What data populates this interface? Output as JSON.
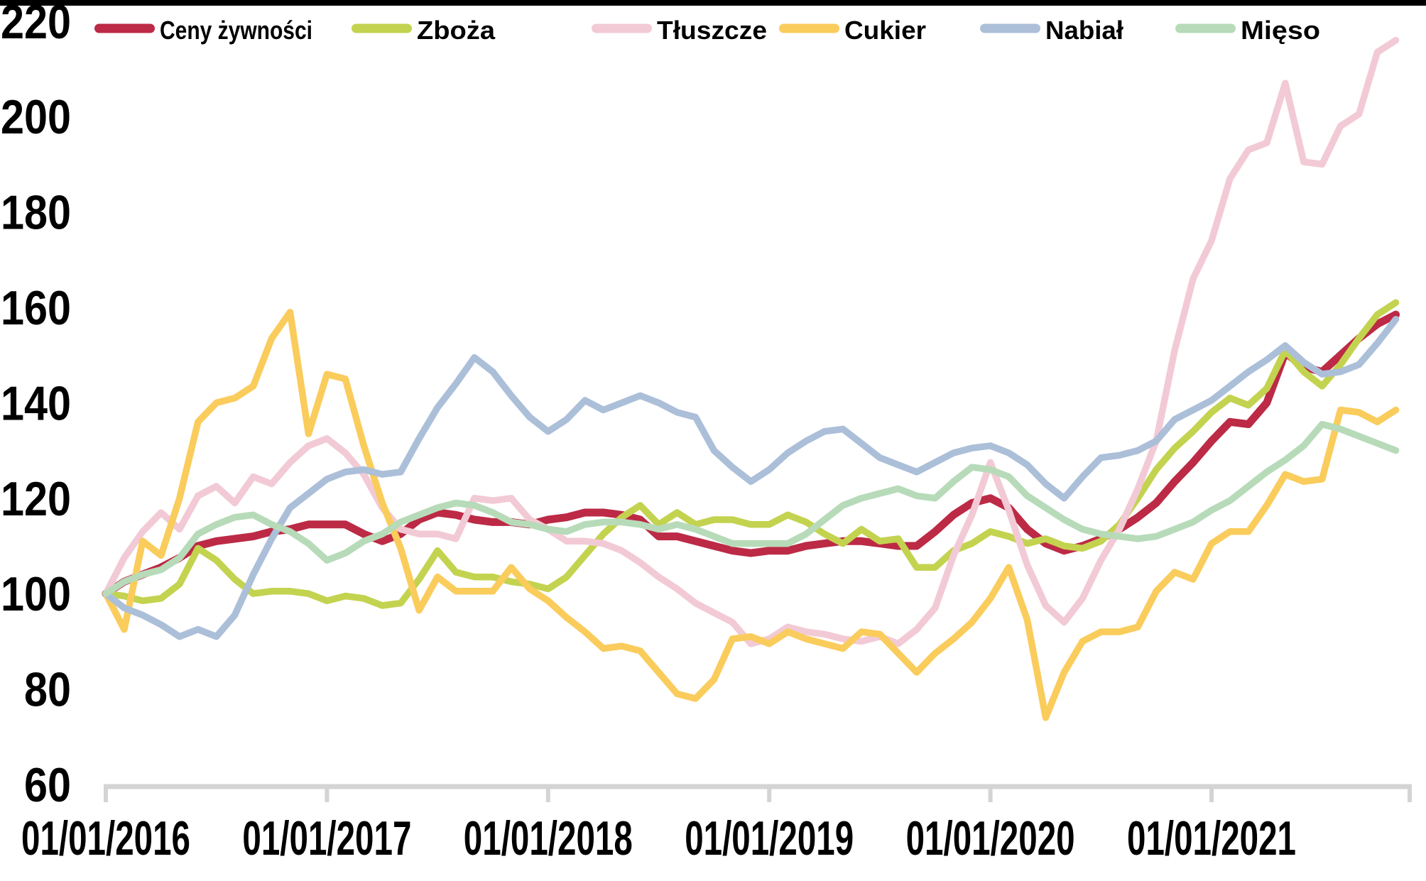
{
  "page": {
    "background": "#ffffff",
    "top_border_color": "#000000"
  },
  "chart_data": {
    "type": "line",
    "title": "",
    "x_tick_labels": [
      "01/01/2016",
      "01/01/2017",
      "01/01/2018",
      "01/01/2019",
      "01/01/2020",
      "01/01/2021"
    ],
    "x_tick_month_indices": [
      0,
      12,
      24,
      36,
      48,
      60
    ],
    "y_ticks": [
      60,
      80,
      100,
      120,
      140,
      160,
      180,
      200,
      220
    ],
    "ylim": [
      60,
      222
    ],
    "grid": "off",
    "legend_position": "top",
    "axis_color": "#d4d4d4",
    "n_points": 71,
    "x_start": "01/01/2016",
    "series": [
      {
        "name": "Ceny żywności",
        "color": "#bc2a45",
        "values": [
          100,
          102.5,
          104,
          105.5,
          107.5,
          110,
          111,
          111.5,
          112,
          113,
          113.5,
          114.5,
          114.5,
          114.5,
          112.5,
          111,
          112.5,
          115.5,
          117,
          116.5,
          115.5,
          115,
          115,
          114.5,
          115.5,
          116,
          117,
          117,
          116.5,
          115.5,
          112,
          112,
          111,
          110,
          109,
          108.5,
          109,
          109,
          110,
          110.5,
          111,
          111,
          110.5,
          110,
          110,
          113,
          116.5,
          119,
          120,
          118,
          113.5,
          110.5,
          109,
          110,
          111.5,
          113.5,
          116,
          119,
          123.5,
          127.5,
          132,
          136,
          135.5,
          140,
          150.5,
          147.5,
          146.5,
          150,
          153.5,
          156.5,
          158.5
        ]
      },
      {
        "name": "Zboża",
        "color": "#c3d34f",
        "values": [
          100,
          99.5,
          98.5,
          99,
          102,
          109.5,
          107,
          103,
          100,
          100.5,
          100.5,
          100,
          98.5,
          99.5,
          99,
          97.5,
          98,
          103,
          109,
          104.5,
          103.5,
          103.5,
          102.5,
          102,
          101,
          103.5,
          108,
          112.5,
          116,
          118.5,
          114.5,
          117,
          114.5,
          115.5,
          115.5,
          114.5,
          114.5,
          116.5,
          115,
          112.5,
          110.5,
          113.5,
          111,
          111.5,
          105.5,
          105.5,
          109,
          110.5,
          113,
          112,
          110.5,
          111.5,
          110,
          109.5,
          111,
          114.5,
          120,
          126,
          130.5,
          134,
          138,
          141,
          139.5,
          143,
          151,
          146.5,
          143.5,
          148,
          153.5,
          158.5,
          161
        ]
      },
      {
        "name": "Tłuszcze",
        "color": "#f2cad5",
        "values": [
          100,
          107.5,
          113,
          117,
          113.5,
          120.5,
          122.5,
          119,
          124.5,
          123,
          127.5,
          131,
          132.5,
          129.5,
          125,
          118,
          113.5,
          112.5,
          112.5,
          111.5,
          120,
          119.5,
          120,
          115.5,
          113.5,
          111,
          111,
          110.5,
          109,
          106.5,
          103.5,
          101,
          98,
          96,
          94,
          89.5,
          90.5,
          93,
          92,
          91.5,
          90.5,
          90,
          91,
          89.5,
          92.5,
          97,
          108,
          116.5,
          127.5,
          117.5,
          106,
          97.5,
          94,
          99,
          107,
          113.5,
          122,
          132,
          151,
          166,
          174,
          187,
          193,
          194.5,
          207,
          190.5,
          190,
          198,
          200.5,
          213.5,
          216
        ]
      },
      {
        "name": "Cukier",
        "color": "#facc5c",
        "values": [
          100,
          92.5,
          111,
          108,
          120,
          136,
          140,
          141,
          143.5,
          153.5,
          159,
          133.5,
          146,
          145,
          131,
          119,
          109.5,
          96.5,
          103.5,
          100.5,
          100.5,
          100.5,
          105.5,
          101,
          98.5,
          95,
          92,
          88.5,
          89,
          88,
          83.5,
          79,
          78,
          82,
          90.5,
          91,
          89.5,
          92,
          90.5,
          89.5,
          88.5,
          92,
          91.5,
          87.5,
          83.5,
          87.5,
          90.5,
          94,
          99,
          105.5,
          94.5,
          74,
          83.5,
          90,
          92,
          92,
          93,
          100.5,
          104.5,
          103,
          110.5,
          113,
          113,
          118.5,
          125,
          123.5,
          124,
          138.5,
          138,
          136,
          138.5
        ]
      },
      {
        "name": "Nabiał",
        "color": "#acbfd9",
        "values": [
          100,
          97,
          95.5,
          93.5,
          91,
          92.5,
          91,
          95.5,
          104,
          111.5,
          118,
          121,
          124,
          125.5,
          126,
          125,
          125.5,
          132.5,
          139,
          144,
          149.5,
          146.5,
          141.5,
          137,
          134,
          136.5,
          140.5,
          138.5,
          140,
          141.5,
          140,
          138,
          137,
          130,
          126.5,
          123.5,
          126,
          129.5,
          132,
          134,
          134.5,
          131.5,
          128.5,
          127,
          125.5,
          127.5,
          129.5,
          130.5,
          131,
          129.5,
          127,
          123,
          120,
          124.5,
          128.5,
          129,
          130,
          132,
          136.5,
          138.5,
          140.5,
          143.5,
          146.5,
          149,
          152,
          148.5,
          146,
          146.5,
          148,
          152.5,
          157.5
        ]
      },
      {
        "name": "Mięso",
        "color": "#b7dbb9",
        "values": [
          100,
          102.5,
          104,
          105,
          107.5,
          112.5,
          114.5,
          116,
          116.5,
          114.5,
          113,
          110.5,
          107,
          108.5,
          111,
          112.5,
          115,
          116.5,
          118,
          119,
          118.5,
          117,
          115,
          114.5,
          113.5,
          113,
          114.5,
          115,
          115,
          114.5,
          113.5,
          114.5,
          113.5,
          112,
          110.5,
          110.5,
          110.5,
          110.5,
          112.5,
          115.5,
          118.5,
          120,
          121,
          122,
          120.5,
          120,
          123.5,
          126.5,
          126,
          124.5,
          120.5,
          118,
          115.5,
          113.5,
          112.5,
          112,
          111.5,
          112,
          113.5,
          115,
          117.5,
          119.5,
          122.5,
          125.5,
          128,
          131,
          135.5,
          134.5,
          133,
          131.5,
          130
        ]
      }
    ]
  }
}
